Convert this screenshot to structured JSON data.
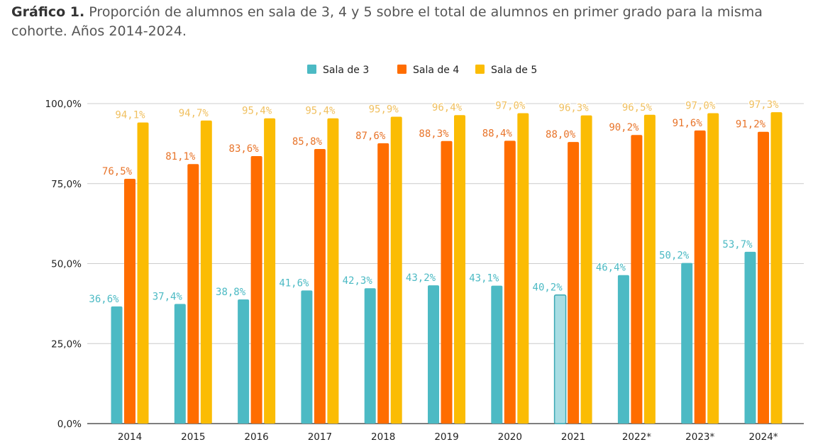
{
  "chart_data": {
    "type": "bar",
    "title_bold": "Gráfico 1.",
    "title": "Proporción de alumnos en sala de 3, 4 y 5 sobre el total de alumnos en primer grado para la misma cohorte. Años 2014-2024.",
    "categories": [
      "2014",
      "2015",
      "2016",
      "2017",
      "2018",
      "2019",
      "2020",
      "2021",
      "2022*",
      "2023*",
      "2024*"
    ],
    "series": [
      {
        "name": "Sala de 3",
        "color": "#4cbac4",
        "values": [
          36.6,
          37.4,
          38.8,
          41.6,
          42.3,
          43.2,
          43.1,
          40.2,
          46.4,
          50.2,
          53.7
        ],
        "labels": [
          "36,6%",
          "37,4%",
          "38,8%",
          "41,6%",
          "42,3%",
          "43,2%",
          "43,1%",
          "40,2%",
          "46,4%",
          "50,2%",
          "53,7%"
        ],
        "highlight_index": 7,
        "highlight_color": "#a8dde3",
        "highlight_stroke": "#3aa8b3"
      },
      {
        "name": "Sala de 4",
        "color": "#ff6d00",
        "values": [
          76.5,
          81.1,
          83.6,
          85.8,
          87.6,
          88.3,
          88.4,
          88.0,
          90.2,
          91.6,
          91.2
        ],
        "labels": [
          "76,5%",
          "81,1%",
          "83,6%",
          "85,8%",
          "87,6%",
          "88,3%",
          "88,4%",
          "88,0%",
          "90,2%",
          "91,6%",
          "91,2%"
        ]
      },
      {
        "name": "Sala de 5",
        "color": "#fbbc04",
        "label_color": "#f0c060",
        "values": [
          94.1,
          94.7,
          95.4,
          95.4,
          95.9,
          96.4,
          97.0,
          96.3,
          96.5,
          97.0,
          97.3
        ],
        "labels": [
          "94,1%",
          "94,7%",
          "95,4%",
          "95,4%",
          "95,9%",
          "96,4%",
          "97,0%",
          "96,3%",
          "96,5%",
          "97,0%",
          "97,3%"
        ]
      }
    ],
    "yticks": [
      "0,0%",
      "25,0%",
      "50,0%",
      "75,0%",
      "100,0%"
    ],
    "ytick_values": [
      0,
      25,
      50,
      75,
      100
    ],
    "ylim": [
      0,
      100
    ],
    "grid": true,
    "legend_position": "top-center",
    "label_colors": [
      "#4cbac4",
      "#e8742a",
      "#f0c060"
    ]
  }
}
